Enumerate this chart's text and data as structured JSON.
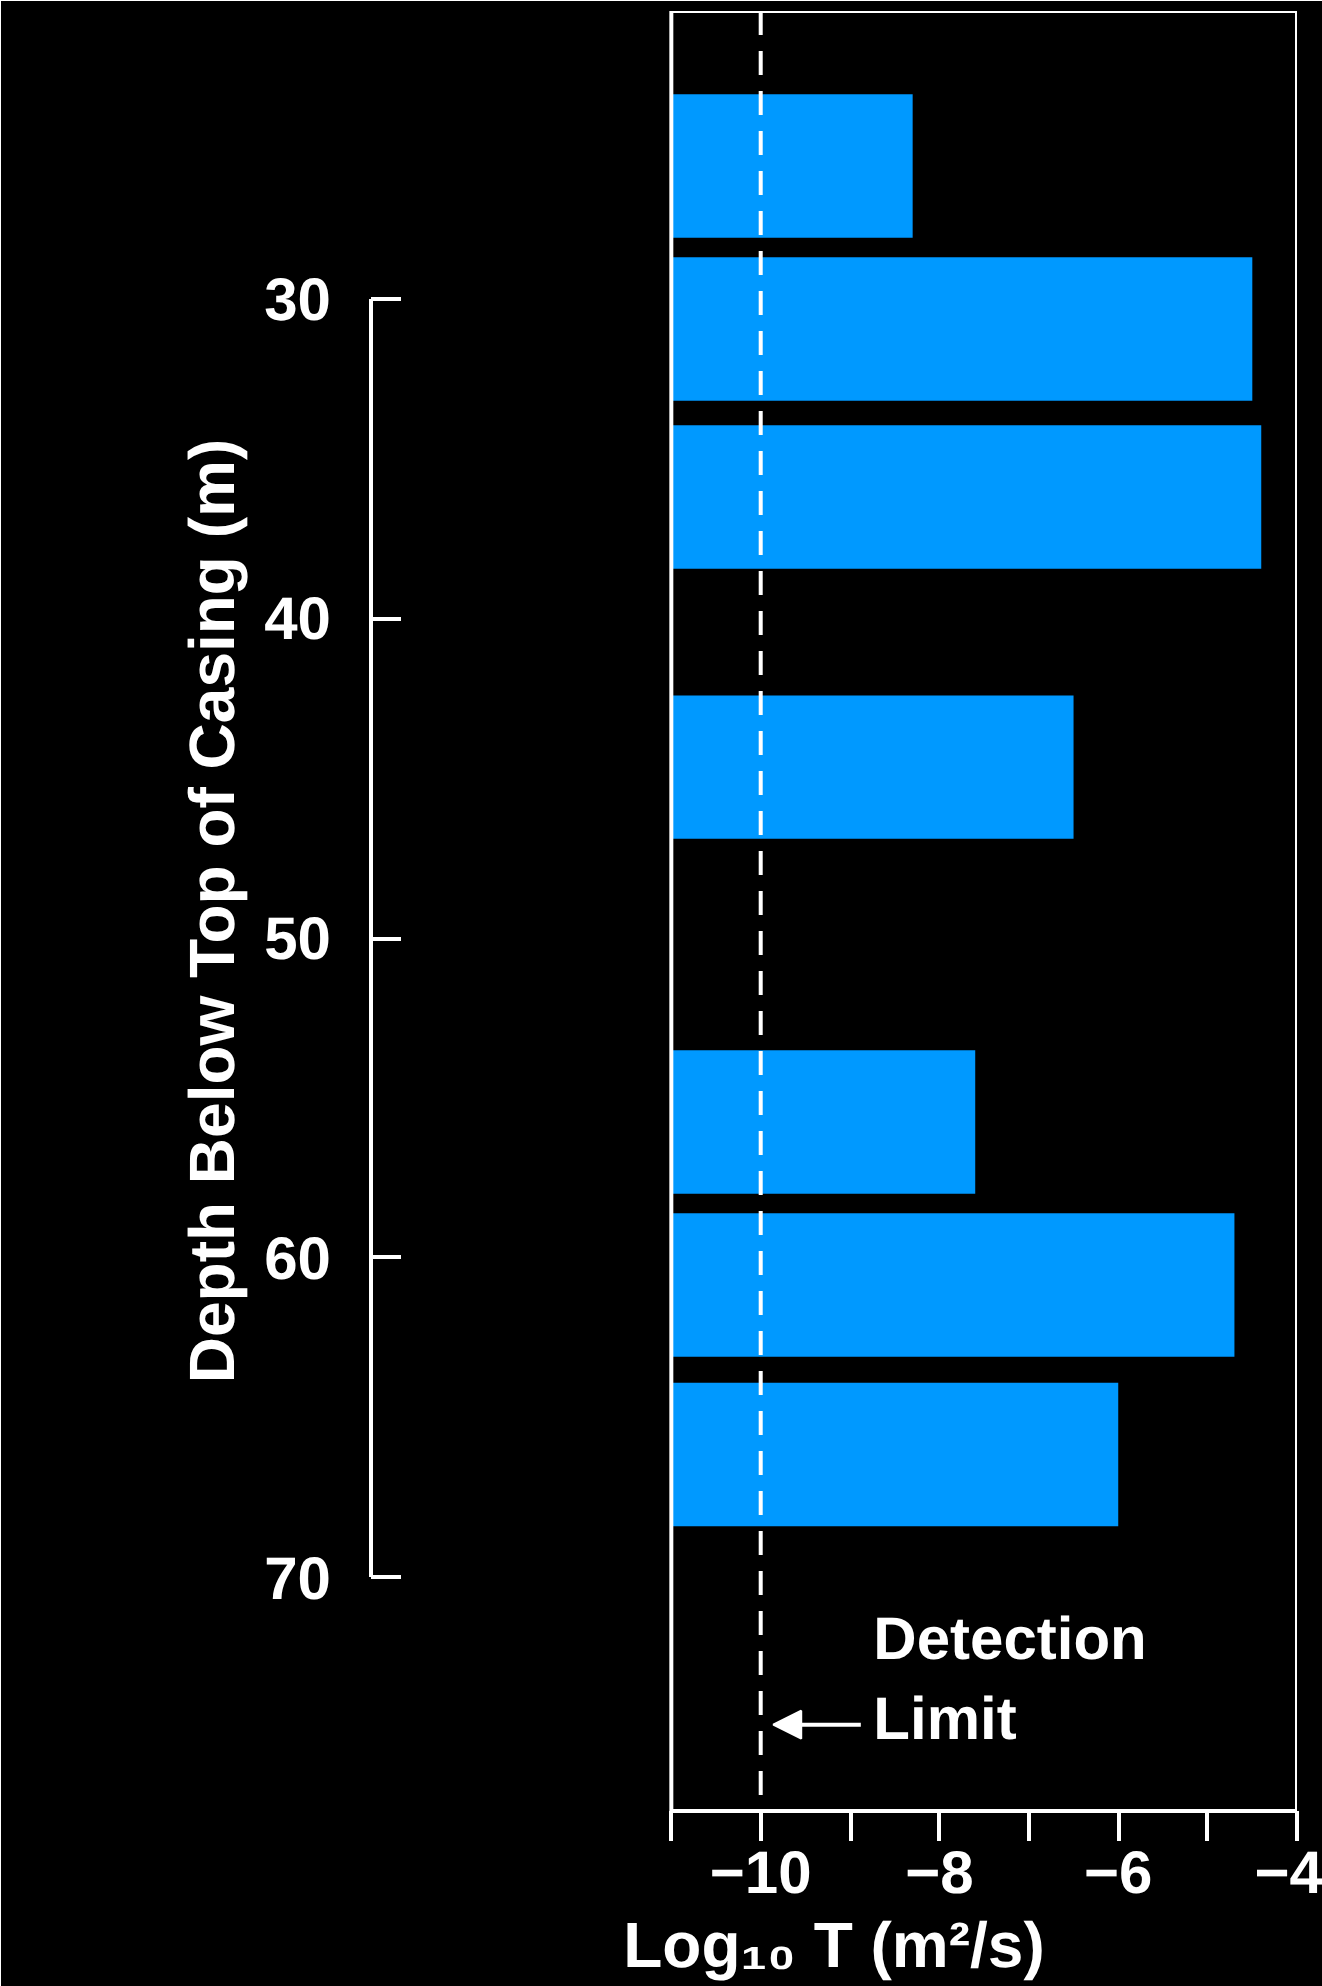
{
  "chart_data": {
    "type": "bar",
    "orientation": "horizontal",
    "x": [
      25.85,
      30.95,
      36.2,
      44.65,
      55.75,
      60.85,
      66.15
    ],
    "base": [
      -11,
      -11,
      -11,
      -11,
      -11,
      -11,
      -11
    ],
    "values": [
      2.7,
      6.5,
      6.6,
      4.5,
      3.4,
      6.3,
      5.0
    ],
    "color": "#0099ff",
    "xlim": [
      -11,
      -4
    ],
    "xticks": [
      {
        "value": -11,
        "label": null
      },
      -10,
      {
        "value": -9,
        "label": null
      },
      -8,
      {
        "value": -7,
        "label": null
      },
      -6,
      {
        "value": -5,
        "label": null
      },
      -4
    ],
    "ylim": [
      77.3,
      21
    ],
    "yticks": [
      30,
      40,
      50,
      60,
      70
    ],
    "xlabel": "Log₁₀ T (m²/s)",
    "ylabel": "Depth Below Top of Casing (m)",
    "ref_lines": [
      {
        "axis": "x",
        "value": -10,
        "color": "#ffffff",
        "line_style": "dashed"
      }
    ],
    "annotations": [
      {
        "text": "Detection\nLimit",
        "x": -10,
        "y": 74.6
      }
    ],
    "grid": false
  }
}
